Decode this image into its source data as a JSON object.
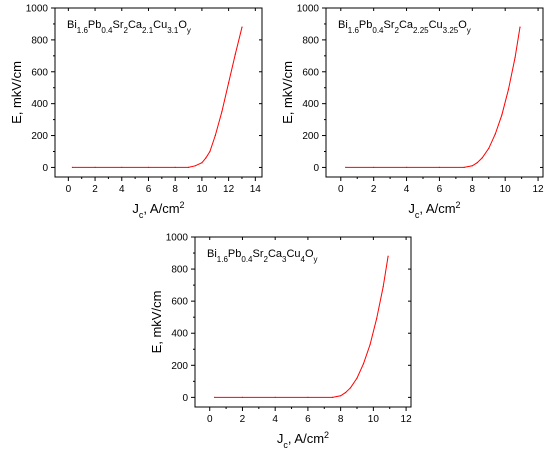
{
  "colors": {
    "curve": "#ff0000",
    "axis": "#000000"
  },
  "chart_data": [
    {
      "type": "line",
      "label_parts": [
        {
          "t": "Bi",
          "sub": false
        },
        {
          "t": "1.6",
          "sub": true
        },
        {
          "t": "Pb",
          "sub": false
        },
        {
          "t": "0.4",
          "sub": true
        },
        {
          "t": "Sr",
          "sub": false
        },
        {
          "t": "2",
          "sub": true
        },
        {
          "t": "Ca",
          "sub": false
        },
        {
          "t": "2.1",
          "sub": true
        },
        {
          "t": "Cu",
          "sub": false
        },
        {
          "t": "3.1",
          "sub": true
        },
        {
          "t": "O",
          "sub": false
        },
        {
          "t": "y",
          "sub": true
        }
      ],
      "xlabel_parts": [
        {
          "t": "J",
          "sub": false
        },
        {
          "t": "c",
          "sub": true
        },
        {
          "t": ", A/cm",
          "sub": false
        },
        {
          "t": "2",
          "sup": true
        }
      ],
      "ylabel": "E, mkV/cm",
      "xlim": [
        -1,
        14.5
      ],
      "ylim": [
        -60,
        1000
      ],
      "xticks": [
        0,
        2,
        4,
        6,
        8,
        10,
        12,
        14
      ],
      "yticks": [
        0,
        200,
        400,
        600,
        800,
        1000
      ],
      "x": [
        0.3,
        2,
        4,
        6,
        8,
        9,
        9.5,
        10,
        10.3,
        10.6,
        11,
        11.5,
        12,
        12.5,
        13
      ],
      "y": [
        0,
        0,
        0,
        0,
        0,
        0,
        10,
        30,
        60,
        100,
        200,
        350,
        530,
        710,
        880
      ]
    },
    {
      "type": "line",
      "label_parts": [
        {
          "t": "Bi",
          "sub": false
        },
        {
          "t": "1.6",
          "sub": true
        },
        {
          "t": "Pb",
          "sub": false
        },
        {
          "t": "0.4",
          "sub": true
        },
        {
          "t": "Sr",
          "sub": false
        },
        {
          "t": "2",
          "sub": true
        },
        {
          "t": "Ca",
          "sub": false
        },
        {
          "t": "2.25",
          "sub": true
        },
        {
          "t": "Cu",
          "sub": false
        },
        {
          "t": "3.25",
          "sub": true
        },
        {
          "t": "O",
          "sub": false
        },
        {
          "t": "y",
          "sub": true
        }
      ],
      "xlabel_parts": [
        {
          "t": "J",
          "sub": false
        },
        {
          "t": "c",
          "sub": true
        },
        {
          "t": ", A/cm",
          "sub": false
        },
        {
          "t": "2",
          "sup": true
        }
      ],
      "ylabel": "E, mkV/cm",
      "xlim": [
        -0.9,
        12.3
      ],
      "ylim": [
        -60,
        1000
      ],
      "xticks": [
        0,
        2,
        4,
        6,
        8,
        10,
        12
      ],
      "yticks": [
        0,
        200,
        400,
        600,
        800,
        1000
      ],
      "x": [
        0.3,
        2,
        4,
        6,
        7.5,
        8,
        8.3,
        8.6,
        9,
        9.4,
        9.8,
        10.2,
        10.6,
        10.9
      ],
      "y": [
        0,
        0,
        0,
        0,
        0,
        10,
        30,
        60,
        120,
        210,
        330,
        490,
        690,
        880
      ]
    },
    {
      "type": "line",
      "label_parts": [
        {
          "t": "Bi",
          "sub": false
        },
        {
          "t": "1.6",
          "sub": true
        },
        {
          "t": "Pb",
          "sub": false
        },
        {
          "t": "0.4",
          "sub": true
        },
        {
          "t": "Sr",
          "sub": false
        },
        {
          "t": "2",
          "sub": true
        },
        {
          "t": "Ca",
          "sub": false
        },
        {
          "t": "3",
          "sub": true
        },
        {
          "t": "Cu",
          "sub": false
        },
        {
          "t": "4",
          "sub": true
        },
        {
          "t": "O",
          "sub": false
        },
        {
          "t": "y",
          "sub": true
        }
      ],
      "xlabel_parts": [
        {
          "t": "J",
          "sub": false
        },
        {
          "t": "c",
          "sub": true
        },
        {
          "t": ", A/cm",
          "sub": false
        },
        {
          "t": "2",
          "sup": true
        }
      ],
      "ylabel": "E, mkV/cm",
      "xlim": [
        -0.9,
        12.3
      ],
      "ylim": [
        -60,
        1000
      ],
      "xticks": [
        0,
        2,
        4,
        6,
        8,
        10,
        12
      ],
      "yticks": [
        0,
        200,
        400,
        600,
        800,
        1000
      ],
      "x": [
        0.3,
        2,
        4,
        6,
        7.5,
        8,
        8.3,
        8.6,
        9,
        9.4,
        9.8,
        10.2,
        10.6,
        10.9
      ],
      "y": [
        0,
        0,
        0,
        0,
        0,
        10,
        30,
        60,
        120,
        210,
        330,
        490,
        690,
        880
      ]
    }
  ]
}
